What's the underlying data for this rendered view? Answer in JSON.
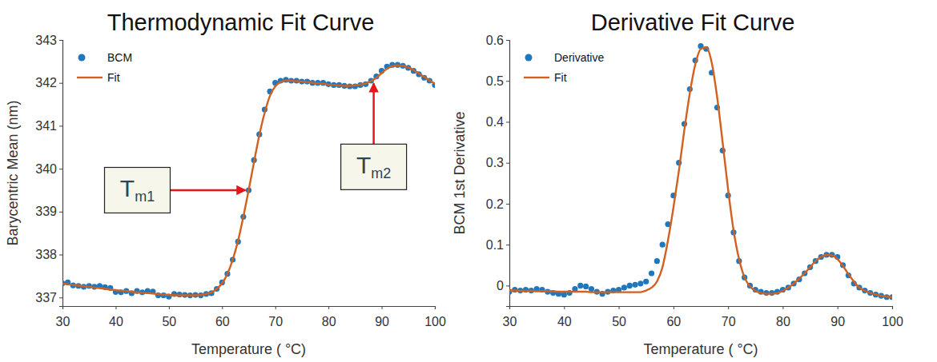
{
  "chart_data": [
    {
      "type": "line",
      "title": "Thermodynamic Fit Curve",
      "x_label": "Temperature ( °C)",
      "y_label": "Barycentric Mean (nm)",
      "x": [
        30,
        31,
        32,
        33,
        34,
        35,
        36,
        37,
        38,
        39,
        40,
        41,
        42,
        43,
        44,
        45,
        46,
        47,
        48,
        49,
        50,
        51,
        52,
        53,
        54,
        55,
        56,
        57,
        58,
        59,
        60,
        61,
        62,
        63,
        64,
        65,
        66,
        67,
        68,
        69,
        70,
        71,
        72,
        73,
        74,
        75,
        76,
        77,
        78,
        79,
        80,
        81,
        82,
        83,
        84,
        85,
        86,
        87,
        88,
        89,
        90,
        91,
        92,
        93,
        94,
        95,
        96,
        97,
        98,
        99,
        100
      ],
      "series": [
        {
          "name": "BCM",
          "type": "scatter",
          "marker": "circle",
          "color": "#1f78bd",
          "values": [
            337.33,
            337.35,
            337.28,
            337.27,
            337.25,
            337.27,
            337.25,
            337.27,
            337.24,
            337.22,
            337.13,
            337.12,
            337.15,
            337.1,
            337.15,
            337.12,
            337.15,
            337.14,
            337.05,
            337.05,
            337.02,
            337.08,
            337.07,
            337.06,
            337.05,
            337.06,
            337.05,
            337.08,
            337.1,
            337.2,
            337.35,
            337.55,
            337.88,
            338.3,
            338.88,
            339.5,
            340.2,
            340.8,
            341.38,
            341.8,
            342.0,
            342.05,
            342.07,
            342.05,
            342.05,
            342.03,
            342.03,
            342.0,
            342.0,
            342.0,
            341.97,
            341.95,
            341.95,
            341.93,
            341.92,
            341.92,
            341.95,
            341.97,
            342.05,
            342.15,
            342.28,
            342.38,
            342.42,
            342.42,
            342.4,
            342.35,
            342.28,
            342.2,
            342.12,
            342.05,
            341.95
          ]
        },
        {
          "name": "Fit",
          "type": "line",
          "line_style": "solid",
          "color": "#d2601f",
          "values": [
            337.32,
            337.31,
            337.29,
            337.28,
            337.26,
            337.25,
            337.23,
            337.22,
            337.2,
            337.19,
            337.17,
            337.16,
            337.15,
            337.13,
            337.12,
            337.11,
            337.1,
            337.09,
            337.08,
            337.07,
            337.06,
            337.05,
            337.05,
            337.05,
            337.05,
            337.05,
            337.06,
            337.08,
            337.12,
            337.2,
            337.33,
            337.55,
            337.88,
            338.32,
            338.88,
            339.5,
            340.15,
            340.78,
            341.3,
            341.7,
            341.92,
            342.02,
            342.05,
            342.05,
            342.04,
            342.03,
            342.02,
            342.0,
            341.99,
            341.98,
            341.96,
            341.95,
            341.94,
            341.93,
            341.93,
            341.94,
            341.96,
            341.99,
            342.04,
            342.12,
            342.23,
            342.33,
            342.39,
            342.41,
            342.4,
            342.36,
            342.3,
            342.22,
            342.14,
            342.06,
            341.98
          ]
        }
      ],
      "xlim": [
        30,
        100
      ],
      "xticks": [
        30,
        40,
        50,
        60,
        70,
        80,
        90,
        100
      ],
      "ylim": [
        336.8,
        343
      ],
      "yticks": [
        337,
        338,
        339,
        340,
        341,
        342,
        343
      ],
      "grid": false,
      "legend": "upper-left",
      "annotations": [
        {
          "text": "Tm1",
          "x": 65,
          "y": 339.5
        },
        {
          "text": "Tm2",
          "x": 88.5,
          "y": 342.1
        }
      ]
    },
    {
      "type": "line",
      "title": "Derivative Fit Curve",
      "x_label": "Temperature ( °C)",
      "y_label": "BCM 1st Derivative",
      "x": [
        30,
        31,
        32,
        33,
        34,
        35,
        36,
        37,
        38,
        39,
        40,
        41,
        42,
        43,
        44,
        45,
        46,
        47,
        48,
        49,
        50,
        51,
        52,
        53,
        54,
        55,
        56,
        57,
        58,
        59,
        60,
        61,
        62,
        63,
        64,
        65,
        66,
        67,
        68,
        69,
        70,
        71,
        72,
        73,
        74,
        75,
        76,
        77,
        78,
        79,
        80,
        81,
        82,
        83,
        84,
        85,
        86,
        87,
        88,
        89,
        90,
        91,
        92,
        93,
        94,
        95,
        96,
        97,
        98,
        99,
        100
      ],
      "series": [
        {
          "name": "Derivative",
          "type": "scatter",
          "marker": "circle",
          "color": "#1f78bd",
          "values": [
            -0.015,
            -0.01,
            -0.012,
            -0.01,
            -0.012,
            -0.008,
            -0.01,
            -0.015,
            -0.018,
            -0.02,
            -0.022,
            -0.018,
            -0.008,
            0.0,
            -0.002,
            -0.008,
            -0.015,
            -0.02,
            -0.015,
            -0.012,
            -0.01,
            -0.005,
            0.0,
            0.002,
            0.005,
            0.01,
            0.03,
            0.06,
            0.1,
            0.15,
            0.22,
            0.3,
            0.395,
            0.48,
            0.55,
            0.585,
            0.578,
            0.52,
            0.435,
            0.33,
            0.22,
            0.13,
            0.06,
            0.02,
            0.0,
            -0.01,
            -0.015,
            -0.018,
            -0.018,
            -0.015,
            -0.01,
            -0.005,
            0.005,
            0.015,
            0.03,
            0.045,
            0.06,
            0.07,
            0.075,
            0.075,
            0.07,
            0.05,
            0.025,
            0.005,
            -0.005,
            -0.012,
            -0.018,
            -0.022,
            -0.025,
            -0.028,
            -0.028
          ]
        },
        {
          "name": "Fit",
          "type": "line",
          "line_style": "solid",
          "color": "#d2601f",
          "values": [
            -0.012,
            -0.012,
            -0.013,
            -0.013,
            -0.013,
            -0.014,
            -0.014,
            -0.014,
            -0.014,
            -0.015,
            -0.015,
            -0.015,
            -0.015,
            -0.015,
            -0.015,
            -0.016,
            -0.016,
            -0.016,
            -0.016,
            -0.016,
            -0.016,
            -0.016,
            -0.016,
            -0.016,
            -0.016,
            -0.012,
            -0.005,
            0.01,
            0.045,
            0.11,
            0.19,
            0.28,
            0.38,
            0.47,
            0.54,
            0.578,
            0.582,
            0.545,
            0.46,
            0.35,
            0.235,
            0.135,
            0.065,
            0.02,
            -0.002,
            -0.013,
            -0.018,
            -0.02,
            -0.02,
            -0.018,
            -0.013,
            -0.005,
            0.005,
            0.017,
            0.03,
            0.045,
            0.06,
            0.07,
            0.075,
            0.074,
            0.065,
            0.048,
            0.028,
            0.01,
            -0.005,
            -0.013,
            -0.018,
            -0.022,
            -0.025,
            -0.027,
            -0.028
          ]
        }
      ],
      "xlim": [
        30,
        100
      ],
      "xticks": [
        30,
        40,
        50,
        60,
        70,
        80,
        90,
        100
      ],
      "ylim": [
        -0.05,
        0.6
      ],
      "yticks": [
        0,
        0.1,
        0.2,
        0.3,
        0.4,
        0.5,
        0.6
      ],
      "grid": false,
      "legend": "upper-left"
    }
  ]
}
